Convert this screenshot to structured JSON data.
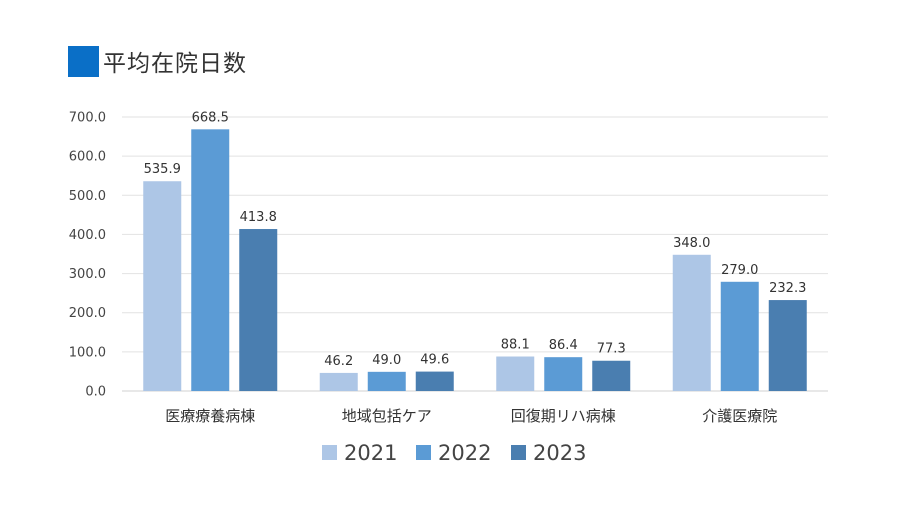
{
  "title": "平均在院日数",
  "colors": {
    "title_marker": "#0a6fc7",
    "grid": "#e2e2e2",
    "axis": "#d0d0d0"
  },
  "chart_data": {
    "type": "bar",
    "categories": [
      "医療療養病棟",
      "地域包括ケア",
      "回復期リハ病棟",
      "介護医療院"
    ],
    "series": [
      {
        "name": "2021",
        "color": "#adc6e6",
        "values": [
          535.9,
          46.2,
          88.1,
          348.0
        ],
        "labels": [
          "535.9",
          "46.2",
          "88.1",
          "348.0"
        ]
      },
      {
        "name": "2022",
        "color": "#5b9bd5",
        "values": [
          668.5,
          49.0,
          86.4,
          279.0
        ],
        "labels": [
          "668.5",
          "49.0",
          "86.4",
          "279.0"
        ]
      },
      {
        "name": "2023",
        "color": "#4a7eb0",
        "values": [
          413.8,
          49.6,
          77.3,
          232.3
        ],
        "labels": [
          "413.8",
          "49.6",
          "77.3",
          "232.3"
        ]
      }
    ],
    "ylim": [
      0,
      700
    ],
    "yticks": [
      "0.0",
      "100.0",
      "200.0",
      "300.0",
      "400.0",
      "500.0",
      "600.0",
      "700.0"
    ],
    "grid": true,
    "legend": "bottom"
  }
}
